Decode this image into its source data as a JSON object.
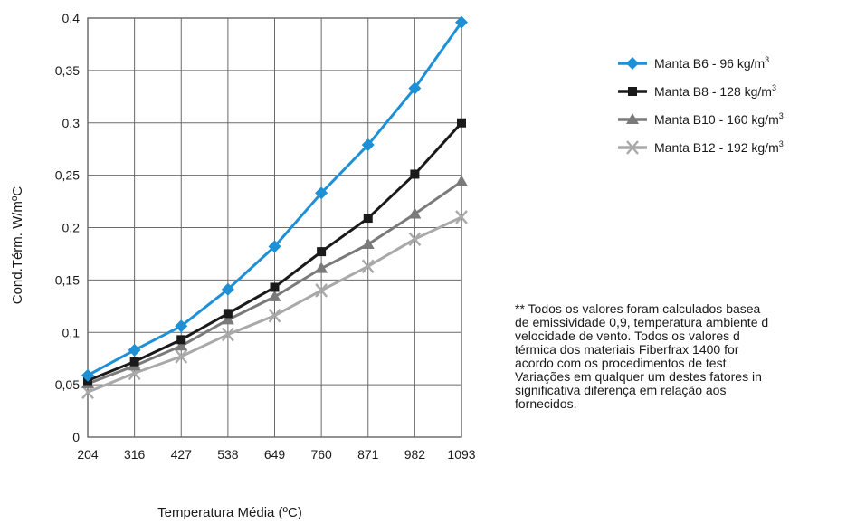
{
  "chart_data": {
    "type": "line",
    "xlabel": "Temperatura Média (ºC)",
    "ylabel": "Cond.Térm. W/mºC",
    "categories": [
      "204",
      "316",
      "427",
      "538",
      "649",
      "760",
      "871",
      "982",
      "1093"
    ],
    "ylim": [
      0,
      0.4
    ],
    "yticks": [
      "0",
      "0,05",
      "0,1",
      "0,15",
      "0,2",
      "0,25",
      "0,3",
      "0,35",
      "0,4"
    ],
    "grid": true,
    "legend_position": "right",
    "series": [
      {
        "name": "Manta B6 -     96 kg/m",
        "sup": "3",
        "color": "#1e90d6",
        "marker": "diamond",
        "values": [
          0.059,
          0.083,
          0.106,
          0.141,
          0.182,
          0.233,
          0.279,
          0.333,
          0.396
        ]
      },
      {
        "name": "Manta B8 -   128 kg/m",
        "sup": "3",
        "color": "#1a1a1a",
        "marker": "square",
        "values": [
          0.054,
          0.072,
          0.093,
          0.118,
          0.143,
          0.177,
          0.209,
          0.251,
          0.3
        ]
      },
      {
        "name": "Manta B10 -  160 kg/m",
        "sup": "3",
        "color": "#7a7a7a",
        "marker": "triangle",
        "values": [
          0.051,
          0.068,
          0.087,
          0.112,
          0.134,
          0.161,
          0.184,
          0.213,
          0.244
        ]
      },
      {
        "name": "Manta B12 -  192 kg/m",
        "sup": "3",
        "color": "#a9a9a9",
        "marker": "x",
        "values": [
          0.043,
          0.061,
          0.077,
          0.098,
          0.116,
          0.14,
          0.163,
          0.189,
          0.21
        ]
      }
    ]
  },
  "note_lines": [
    "** Todos os valores foram calculados basea",
    "de emissividade 0,9, temperatura ambiente d",
    "velocidade de vento. Todos os valores d",
    "térmica dos materiais Fiberfrax 1400 for",
    "acordo com os procedimentos de test",
    "Variações em qualquer um destes fatores in",
    "significativa diferença em relação aos",
    "fornecidos."
  ]
}
